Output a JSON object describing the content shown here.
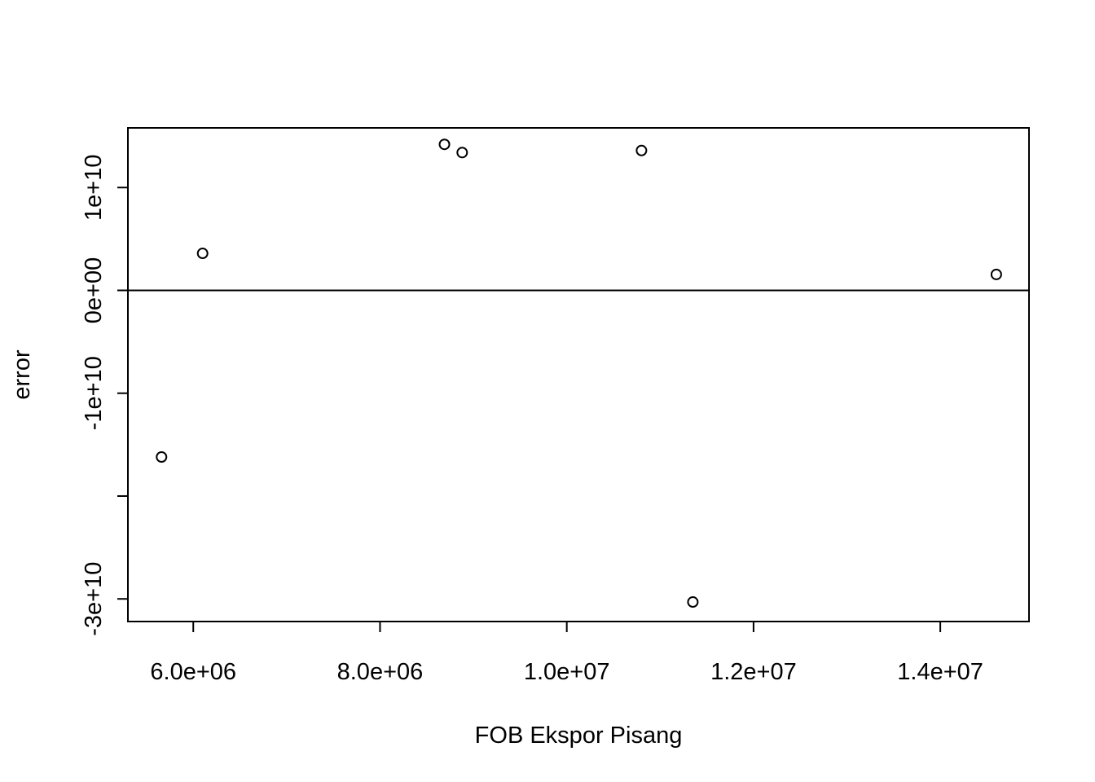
{
  "chart_data": {
    "type": "scatter",
    "title": "",
    "xlabel": "FOB Ekspor Pisang",
    "ylabel": "error",
    "xlim": [
      5300000,
      14950000
    ],
    "ylim": [
      -32200000000,
      15800000000
    ],
    "x_ticks": [
      6000000,
      8000000,
      10000000,
      12000000,
      14000000
    ],
    "x_tick_labels": [
      "6.0e+06",
      "8.0e+06",
      "1.0e+07",
      "1.2e+07",
      "1.4e+07"
    ],
    "y_ticks": [
      -30000000000,
      -20000000000,
      -10000000000,
      0,
      10000000000
    ],
    "y_tick_labels": [
      "-3e+10",
      "",
      "-1e+10",
      "0e+00",
      "1e+10"
    ],
    "reference_line": {
      "y": 0
    },
    "points": [
      {
        "x": 5660000,
        "y": -16200000000
      },
      {
        "x": 6100000,
        "y": 3600000000
      },
      {
        "x": 8690000,
        "y": 14200000000
      },
      {
        "x": 8880000,
        "y": 13400000000
      },
      {
        "x": 10800000,
        "y": 13600000000
      },
      {
        "x": 11350000,
        "y": -30300000000
      },
      {
        "x": 14600000,
        "y": 1550000000
      }
    ],
    "grid": false,
    "legend": "none",
    "marker": "open-circle"
  }
}
